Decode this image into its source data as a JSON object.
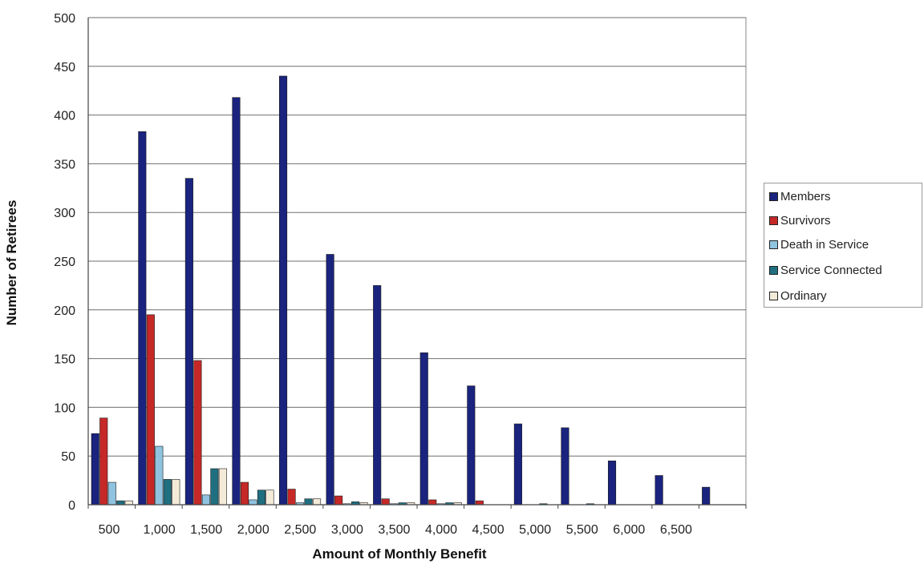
{
  "chart_data": {
    "type": "bar",
    "xlabel": "Amount of Monthly Benefit",
    "ylabel": "Number of Retirees",
    "ylim": [
      0,
      500
    ],
    "yticks": [
      0,
      50,
      100,
      150,
      200,
      250,
      300,
      350,
      400,
      450,
      500
    ],
    "grid": true,
    "legend_position": "right",
    "categories": [
      "500",
      "1,000",
      "1,500",
      "2,000",
      "2,500",
      "3,000",
      "3,500",
      "4,000",
      "4,500",
      "5,000",
      "5,500",
      "6,000",
      "6,500",
      ""
    ],
    "series": [
      {
        "name": "Members",
        "color": "#1a237e",
        "values": [
          73,
          383,
          335,
          418,
          440,
          257,
          225,
          156,
          122,
          83,
          79,
          45,
          30,
          18
        ]
      },
      {
        "name": "Survivors",
        "color": "#c62828",
        "values": [
          89,
          195,
          148,
          23,
          16,
          9,
          6,
          5,
          4,
          0,
          0,
          0,
          0,
          0
        ]
      },
      {
        "name": "Death in Service",
        "color": "#8fc3e0",
        "values": [
          23,
          60,
          10,
          5,
          2,
          1,
          1,
          1,
          0,
          0,
          0,
          0,
          0,
          0
        ]
      },
      {
        "name": "Service Connected",
        "color": "#1f6f80",
        "values": [
          4,
          26,
          37,
          15,
          6,
          3,
          2,
          2,
          0,
          1,
          1,
          0,
          0,
          0
        ]
      },
      {
        "name": "Ordinary",
        "color": "#f3ead8",
        "values": [
          4,
          26,
          37,
          15,
          6,
          2,
          2,
          2,
          0,
          0,
          0,
          0,
          0,
          0
        ]
      }
    ]
  }
}
